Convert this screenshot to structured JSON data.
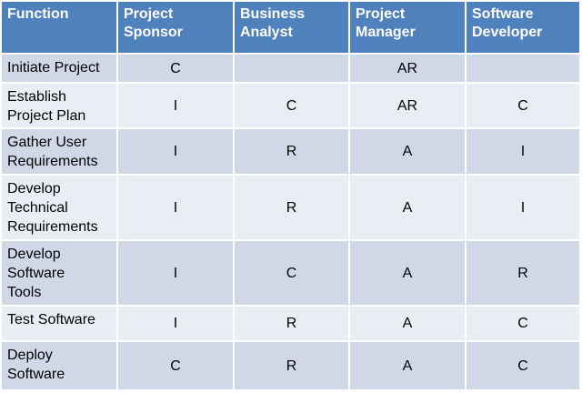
{
  "table": {
    "columns": [
      "Function",
      "Project\nSponsor",
      "Business\nAnalyst",
      "Project\nManager",
      "Software\nDeveloper"
    ],
    "rows": [
      {
        "function": "Initiate Project",
        "sponsor": "C",
        "analyst": "",
        "manager": "AR",
        "developer": ""
      },
      {
        "function": "Establish\nProject Plan",
        "sponsor": "I",
        "analyst": "C",
        "manager": "AR",
        "developer": "C"
      },
      {
        "function": "Gather User\nRequirements",
        "sponsor": "I",
        "analyst": "R",
        "manager": "A",
        "developer": "I"
      },
      {
        "function": "Develop\nTechnical\nRequirements",
        "sponsor": "I",
        "analyst": "R",
        "manager": "A",
        "developer": "I"
      },
      {
        "function": "Develop\nSoftware\nTools",
        "sponsor": "I",
        "analyst": "C",
        "manager": "A",
        "developer": "R"
      },
      {
        "function": "Test Software",
        "sponsor": "I",
        "analyst": "R",
        "manager": "A",
        "developer": "C"
      },
      {
        "function": "Deploy\nSoftware",
        "sponsor": "C",
        "analyst": "R",
        "manager": "A",
        "developer": "C"
      }
    ]
  },
  "colors": {
    "header_bg": "#4f81bd",
    "row_odd_bg": "#d0d8e8",
    "row_even_bg": "#e9edf4"
  }
}
